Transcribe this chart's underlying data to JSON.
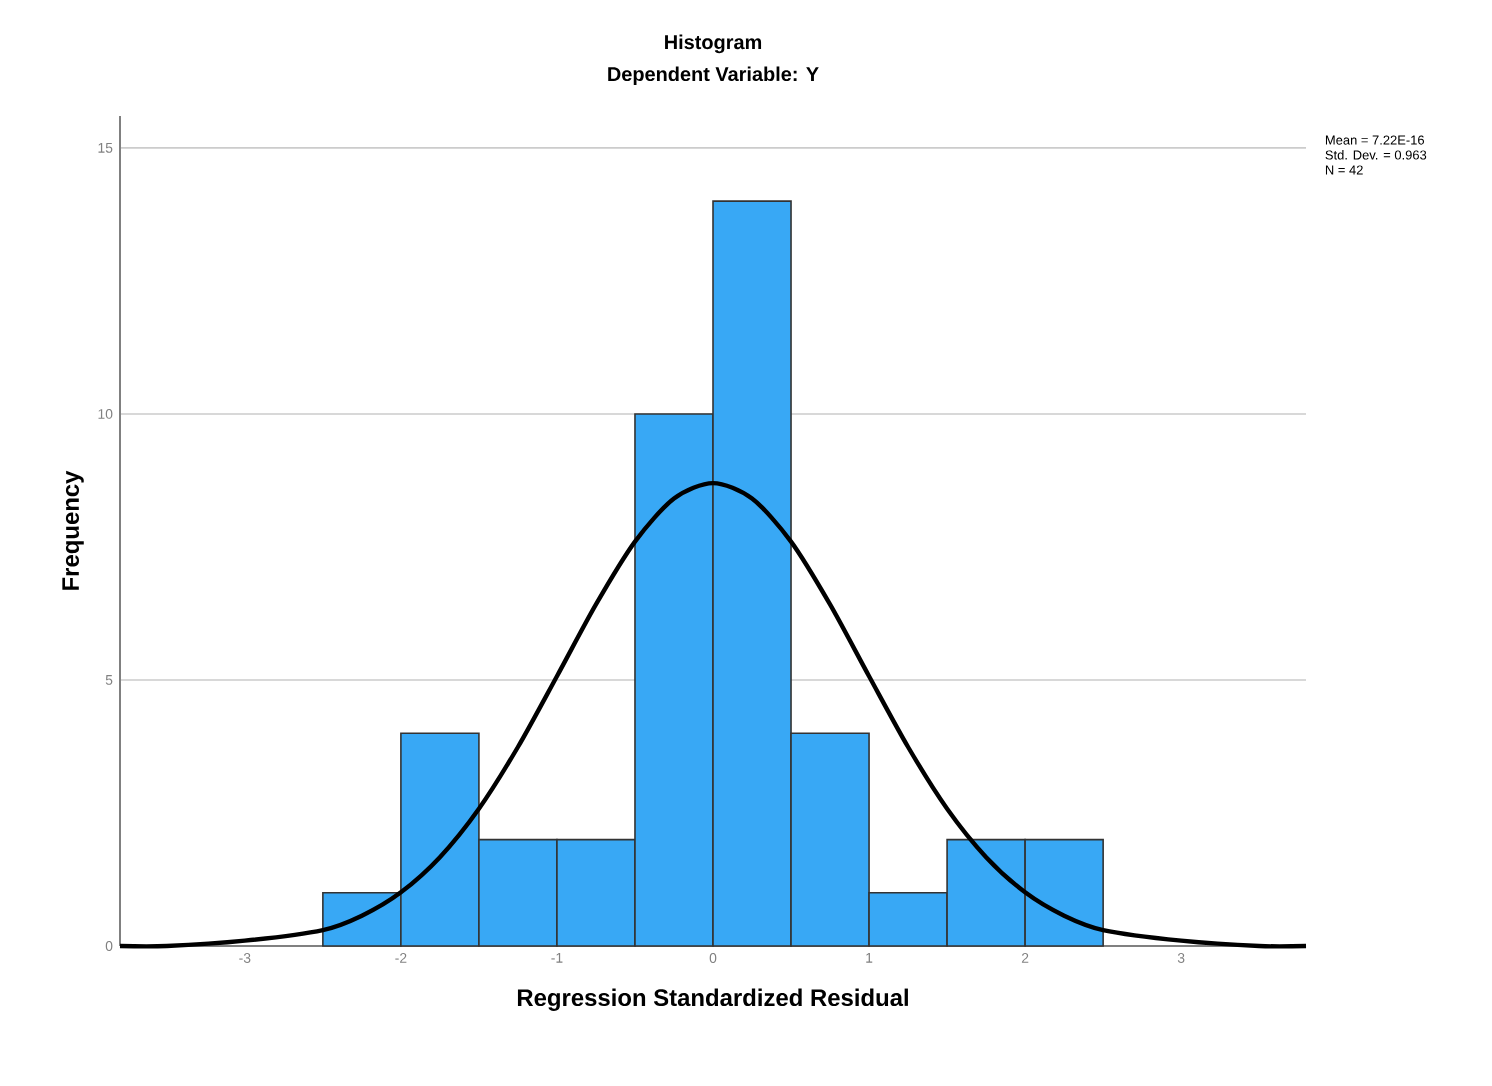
{
  "chart_data": {
    "type": "histogram",
    "title": "Histogram",
    "subtitle": "Dependent Variable: Y",
    "xlabel": "Regression Standardized Residual",
    "ylabel": "Frequency",
    "bins": [
      -2.5,
      -2,
      -1.5,
      -1,
      -0.5,
      0,
      0.5,
      1,
      1.5,
      2,
      2.5
    ],
    "values": [
      1,
      4,
      2,
      2,
      10,
      14,
      4,
      1,
      2,
      2
    ],
    "color": "#38a8f5",
    "series": [
      {
        "type": "line",
        "color": "#000000",
        "x": [
          -3.8,
          -3.5,
          -3,
          -2.5,
          -2.25,
          -2,
          -1.75,
          -1.5,
          -1.25,
          -1,
          -0.75,
          -0.5,
          -0.25,
          0,
          0.25,
          0.5,
          0.75,
          1,
          1.25,
          1.5,
          1.75,
          2,
          2.25,
          2.5,
          3,
          3.5,
          3.8
        ],
        "values": [
          0,
          0,
          0.1,
          0.3,
          0.57,
          1.01,
          1.67,
          2.58,
          3.74,
          5.07,
          6.42,
          7.6,
          8.41,
          8.7,
          8.41,
          7.6,
          6.42,
          5.07,
          3.74,
          2.58,
          1.67,
          1.01,
          0.57,
          0.3,
          0.1,
          0,
          0
        ]
      }
    ],
    "xlim": [
      -3.8,
      3.8
    ],
    "ylim": [
      0,
      15.6
    ],
    "xticks": [
      -3,
      -2,
      -1,
      0,
      1,
      2,
      3
    ],
    "yticks": [
      0,
      5,
      10,
      15
    ],
    "grid": "y",
    "annotations": [
      "Mean = 7.22E-16",
      "Std. Dev. = 0.963",
      "N = 42"
    ]
  }
}
